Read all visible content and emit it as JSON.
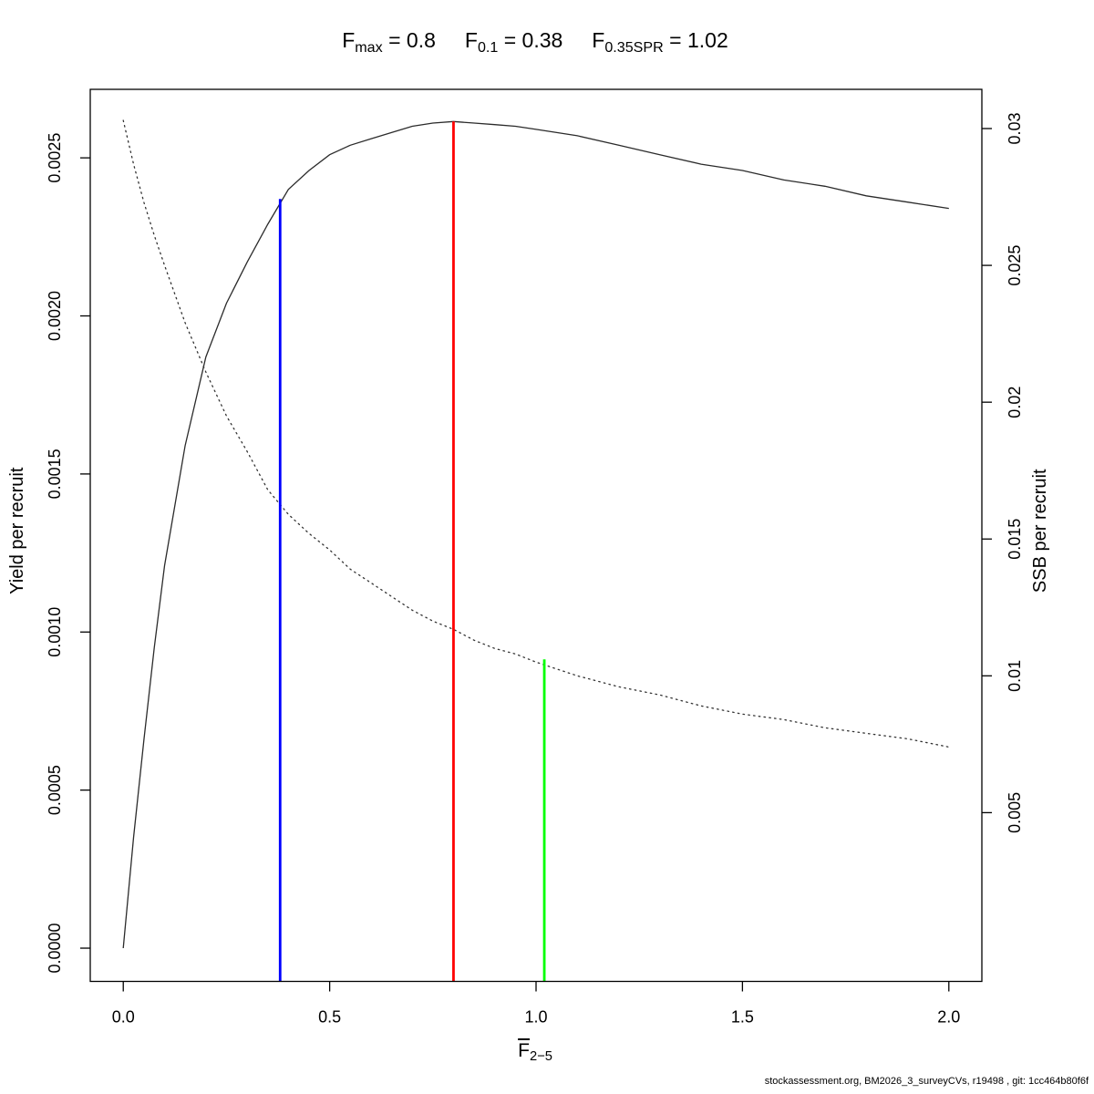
{
  "title": {
    "items": [
      {
        "base": "F",
        "sub": "max",
        "rest": " = 0.8"
      },
      {
        "base": "F",
        "sub": "0.1",
        "rest": " = 0.38"
      },
      {
        "base": "F",
        "sub": "0.35SPR",
        "rest": " = 1.02"
      }
    ]
  },
  "footer": "stockassessment.org, BM2026_3_surveyCVs, r19498 , git: 1cc464b80f6f",
  "chart_data": {
    "type": "line",
    "x": [
      0,
      0.025,
      0.05,
      0.075,
      0.1,
      0.15,
      0.2,
      0.25,
      0.3,
      0.35,
      0.4,
      0.45,
      0.5,
      0.55,
      0.6,
      0.65,
      0.7,
      0.75,
      0.8,
      0.85,
      0.9,
      0.95,
      1.0,
      1.1,
      1.2,
      1.3,
      1.4,
      1.5,
      1.6,
      1.7,
      1.8,
      1.9,
      2.0
    ],
    "series": [
      {
        "name": "Yield per recruit",
        "axis": "left",
        "style": "solid",
        "color": "#2b2b2b",
        "values": [
          0,
          0.00035,
          0.00066,
          0.00095,
          0.00121,
          0.00159,
          0.00187,
          0.00204,
          0.00217,
          0.00229,
          0.0024,
          0.00246,
          0.00251,
          0.00254,
          0.00256,
          0.00258,
          0.0026,
          0.00261,
          0.002615,
          0.00261,
          0.002605,
          0.0026,
          0.00259,
          0.00257,
          0.00254,
          0.00251,
          0.00248,
          0.00246,
          0.00243,
          0.00241,
          0.00238,
          0.00236,
          0.00234
        ]
      },
      {
        "name": "SSB per recruit",
        "axis": "right",
        "style": "dotted",
        "color": "#333333",
        "values": [
          0.0303,
          0.0287,
          0.0273,
          0.0261,
          0.025,
          0.0229,
          0.0211,
          0.0195,
          0.0182,
          0.0168,
          0.0159,
          0.0152,
          0.0146,
          0.0139,
          0.0134,
          0.0129,
          0.0124,
          0.012,
          0.0117,
          0.0113,
          0.011,
          0.0108,
          0.0105,
          0.01,
          0.0096,
          0.0093,
          0.0089,
          0.0086,
          0.0084,
          0.0081,
          0.0079,
          0.0077,
          0.0074
        ]
      }
    ],
    "ref_lines": [
      {
        "name": "F0.1",
        "x": 0.38,
        "axis": "left",
        "top_value": 0.00237,
        "color": "#0000ff"
      },
      {
        "name": "Fmax",
        "x": 0.8,
        "axis": "left",
        "top_value": 0.002615,
        "color": "#ff0000"
      },
      {
        "name": "F0.35SPR",
        "x": 1.02,
        "axis": "right",
        "top_value": 0.0106,
        "color": "#00ff00"
      }
    ],
    "x_axis": {
      "label_base": "F",
      "label_sub": "2−5",
      "ticks": [
        0,
        0.5,
        1.0,
        1.5,
        2.0
      ],
      "tick_labels": [
        "0.0",
        "0.5",
        "1.0",
        "1.5",
        "2.0"
      ],
      "range": [
        -0.08,
        2.08
      ]
    },
    "y_axis_left": {
      "label": "Yield per recruit",
      "ticks": [
        0,
        0.0005,
        0.001,
        0.0015,
        0.002,
        0.0025
      ],
      "tick_labels": [
        "0.0000",
        "0.0005",
        "0.0010",
        "0.0015",
        "0.0020",
        "0.0025"
      ],
      "range": [
        -0.0001052,
        0.0027167
      ]
    },
    "y_axis_right": {
      "label": "SSB per recruit",
      "ticks": [
        0.005,
        0.01,
        0.015,
        0.02,
        0.025,
        0.03
      ],
      "tick_labels": [
        "0.005",
        "0.01",
        "0.015",
        "0.02",
        "0.025",
        "0.03"
      ],
      "range": [
        -0.001167,
        0.031433
      ]
    },
    "grid": false,
    "legend": "none",
    "background": "#ffffff"
  }
}
